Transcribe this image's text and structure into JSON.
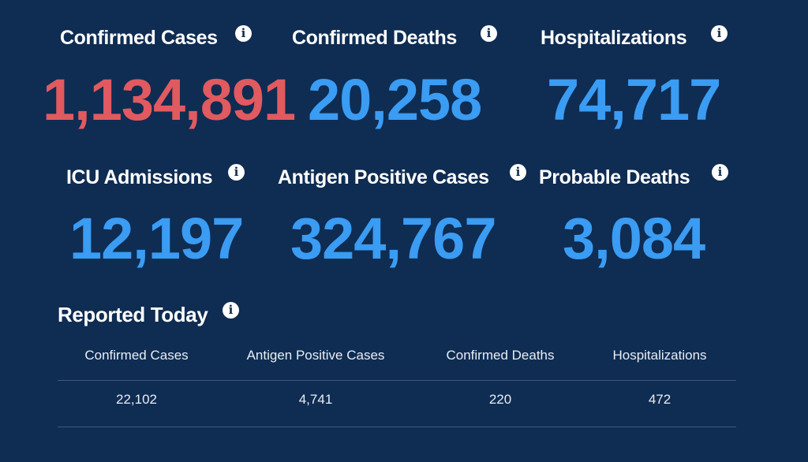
{
  "stats": [
    {
      "label": "Confirmed Cases",
      "value": "1,134,891",
      "color": "#e05a60"
    },
    {
      "label": "Confirmed Deaths",
      "value": "20,258",
      "color": "#3a9cf3"
    },
    {
      "label": "Hospitalizations",
      "value": "74,717",
      "color": "#3a9cf3"
    },
    {
      "label": "ICU Admissions",
      "value": "12,197",
      "color": "#3a9cf3"
    },
    {
      "label": "Antigen Positive Cases",
      "value": "324,767",
      "color": "#3a9cf3"
    },
    {
      "label": "Probable Deaths",
      "value": "3,084",
      "color": "#3a9cf3"
    }
  ],
  "info_icon": {
    "glyph": "i",
    "icon": "info-icon"
  },
  "reported_today": {
    "title": "Reported Today",
    "headers": [
      "Confirmed Cases",
      "Antigen Positive Cases",
      "Confirmed Deaths",
      "Hospitalizations"
    ],
    "values": [
      "22,102",
      "4,741",
      "220",
      "472"
    ]
  },
  "colors": {
    "background": "#0f2c52",
    "accent_red": "#e05a60",
    "accent_blue": "#3a9cf3",
    "divider": "#41597a"
  }
}
